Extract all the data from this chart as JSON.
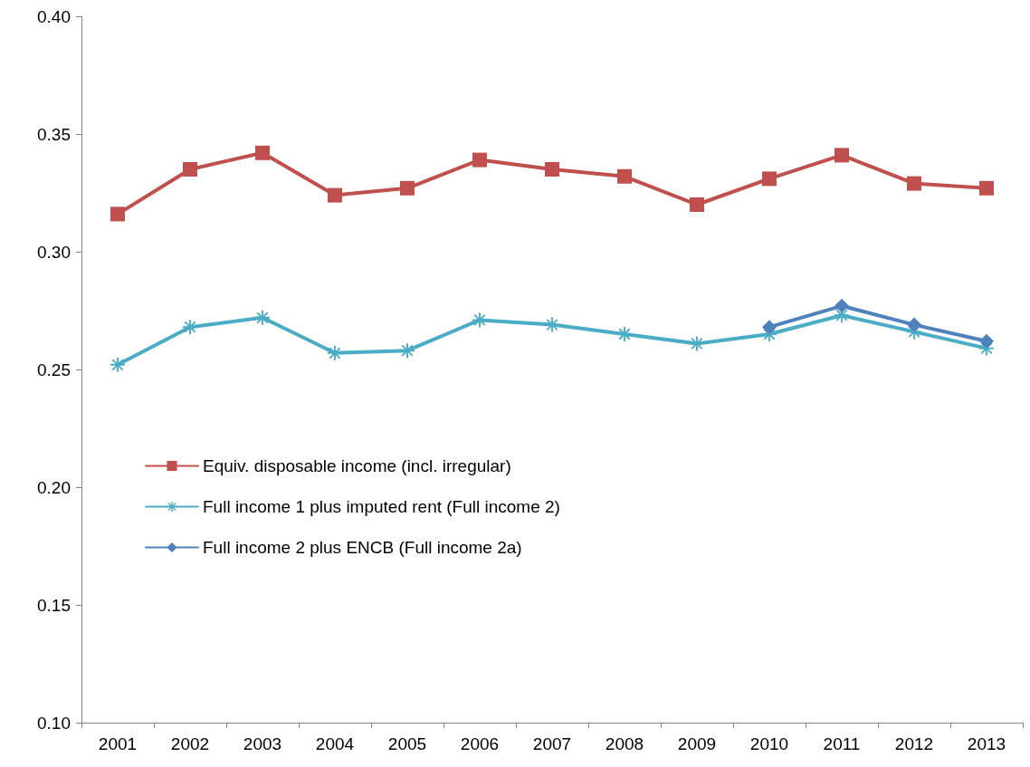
{
  "chart_data": {
    "type": "line",
    "categories": [
      "2001",
      "2002",
      "2003",
      "2004",
      "2005",
      "2006",
      "2007",
      "2008",
      "2009",
      "2010",
      "2011",
      "2012",
      "2013"
    ],
    "series": [
      {
        "name": "Equiv. disposable income (incl. irregular)",
        "color": "#c0504d",
        "marker": "square",
        "values": [
          0.316,
          0.335,
          0.342,
          0.324,
          0.327,
          0.339,
          0.335,
          0.332,
          0.32,
          0.331,
          0.341,
          0.329,
          0.327
        ]
      },
      {
        "name": "Full income 1 plus imputed rent (Full income 2)",
        "color": "#4bacc6",
        "marker": "cross",
        "values": [
          0.252,
          0.268,
          0.272,
          0.257,
          0.258,
          0.271,
          0.269,
          0.265,
          0.261,
          0.265,
          0.273,
          0.266,
          0.259
        ]
      },
      {
        "name": "Full income 2 plus ENCB (Full income 2a)",
        "color": "#4f81bd",
        "marker": "diamond",
        "values": [
          null,
          null,
          null,
          null,
          null,
          null,
          null,
          null,
          null,
          0.268,
          0.277,
          0.269,
          0.262
        ]
      }
    ],
    "ylim": [
      0.1,
      0.4
    ],
    "yticks": [
      {
        "value": 0.1,
        "label": "0.10"
      },
      0.15,
      {
        "value": 0.2,
        "label": "0.20"
      },
      0.25,
      {
        "value": 0.3,
        "label": "0.30"
      },
      0.35,
      {
        "value": 0.4,
        "label": "0.40"
      }
    ],
    "grid": false,
    "legend": "left",
    "line_style": "solid"
  }
}
